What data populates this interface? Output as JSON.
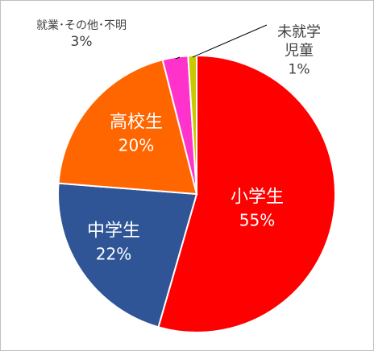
{
  "chart_data": {
    "type": "pie",
    "categories": [
      "小学生",
      "中学生",
      "高校生",
      "就業･その他･不明",
      "未就学児童"
    ],
    "values": [
      55,
      22,
      20,
      3,
      1
    ],
    "value_labels": [
      "55%",
      "22%",
      "20%",
      "3%",
      "1%"
    ],
    "colors": [
      "#ff0000",
      "#2f5597",
      "#ff6600",
      "#ff33cc",
      "#c9c900"
    ]
  }
}
